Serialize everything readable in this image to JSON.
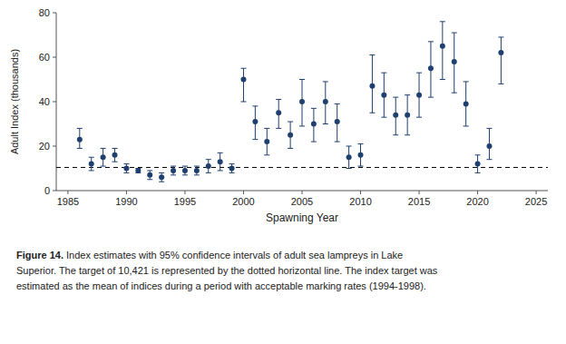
{
  "chart_data": {
    "type": "scatter",
    "x": [
      1986,
      1987,
      1988,
      1989,
      1990,
      1991,
      1992,
      1993,
      1994,
      1995,
      1996,
      1997,
      1998,
      1999,
      2000,
      2001,
      2002,
      2003,
      2004,
      2005,
      2006,
      2007,
      2008,
      2009,
      2010,
      2011,
      2012,
      2013,
      2014,
      2015,
      2016,
      2017,
      2018,
      2019,
      2020,
      2021,
      2022
    ],
    "values": [
      23,
      12,
      15,
      16,
      10,
      9,
      7,
      6,
      9,
      9,
      9,
      11,
      13,
      10,
      50,
      31,
      22,
      35,
      25,
      40,
      30,
      40,
      31,
      15,
      16,
      47,
      43,
      34,
      34,
      43,
      55,
      65,
      58,
      39,
      12,
      20,
      62
    ],
    "err_low": [
      4,
      3,
      4,
      3,
      2,
      1,
      2,
      2,
      2,
      2,
      2,
      3,
      4,
      2,
      10,
      8,
      6,
      7,
      6,
      11,
      8,
      10,
      9,
      5,
      5,
      12,
      10,
      9,
      9,
      10,
      13,
      15,
      14,
      10,
      4,
      6,
      14
    ],
    "err_high": [
      5,
      3,
      4,
      3,
      2,
      1,
      2,
      2,
      2,
      2,
      2,
      3,
      4,
      2,
      5,
      7,
      6,
      6,
      6,
      10,
      7,
      9,
      8,
      5,
      5,
      14,
      10,
      8,
      9,
      10,
      12,
      11,
      13,
      10,
      4,
      8,
      7
    ],
    "target_line": 10.421,
    "color": "#1f3f6e",
    "marker": "circle",
    "grid": false,
    "ylabel": "Adult Index (thousands)",
    "xlabel": "Spawning Year",
    "ylim": [
      0,
      80
    ],
    "xlim": [
      1984,
      2026
    ],
    "xticks": [
      1985,
      1990,
      1995,
      2000,
      2005,
      2010,
      2015,
      2020,
      2025
    ],
    "yticks": [
      0,
      20,
      40,
      60,
      80
    ],
    "caption_bold": "Figure 14.",
    "caption": [
      " Index estimates with 95% confidence intervals of adult sea lampreys in Lake",
      "Superior. The target of 10,421 is represented by the dotted horizontal line. The index target was",
      "estimated as the mean of indices during a period with acceptable marking rates (1994-1998)."
    ]
  }
}
